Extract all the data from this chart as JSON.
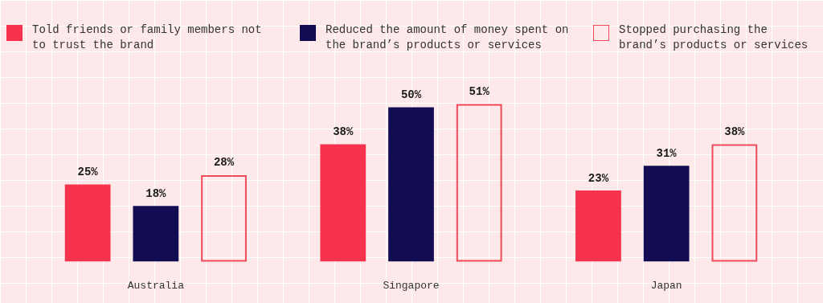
{
  "chart_data": {
    "type": "bar",
    "categories": [
      "Australia",
      "Singapore",
      "Japan"
    ],
    "series": [
      {
        "name": "Told friends or family members not to trust the brand",
        "color": "#f7324c",
        "values": [
          25,
          38,
          23
        ],
        "value_labels": [
          "25%",
          "38%",
          "23%"
        ]
      },
      {
        "name": "Reduced the amount of money spent on the brand’s products or services",
        "color": "#120d52",
        "values": [
          18,
          50,
          31
        ],
        "value_labels": [
          "18%",
          "50%",
          "31%"
        ]
      },
      {
        "name": "Stopped purchasing the brand’s products or services",
        "color": "#f04a5a",
        "line_style": "solid",
        "values": [
          28,
          51,
          38
        ],
        "value_labels": [
          "28%",
          "51%",
          "38%"
        ]
      }
    ],
    "legend": "top",
    "tick_labels": "x"
  }
}
